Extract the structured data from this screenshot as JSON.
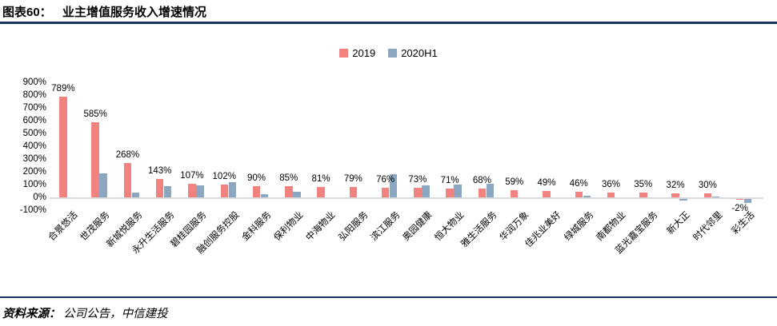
{
  "header": {
    "figure_label": "图表60：",
    "title": "业主增值服务收入增速情况"
  },
  "legend": [
    {
      "name": "2019",
      "color": "#F2827F"
    },
    {
      "name": "2020H1",
      "color": "#8BA7C2"
    }
  ],
  "colors": {
    "accent_navy": "#17375E",
    "axis_line": "#D9D9D9",
    "series_2019": "#F2827F",
    "series_2020h1": "#8BA7C2"
  },
  "chart_data": {
    "type": "bar",
    "title": "业主增值服务收入增速情况",
    "categories": [
      "合景悠活",
      "世茂服务",
      "新城悦服务",
      "永升生活服务",
      "碧桂园服务",
      "融创服务控股",
      "金科服务",
      "保利物业",
      "中海物业",
      "弘阳服务",
      "滨江服务",
      "奥园健康",
      "恒大物业",
      "雅生活服务",
      "华润万象",
      "佳兆业美好",
      "绿城服务",
      "南都物业",
      "蓝光嘉宝服务",
      "新大正",
      "时代邻里",
      "彩生活"
    ],
    "series": [
      {
        "name": "2019",
        "color": "#F2827F",
        "values": [
          789,
          585,
          268,
          143,
          107,
          102,
          90,
          85,
          81,
          79,
          76,
          73,
          71,
          68,
          59,
          49,
          46,
          36,
          35,
          32,
          30,
          -2
        ],
        "labels": [
          "789%",
          "585%",
          "268%",
          "143%",
          "107%",
          "102%",
          "90%",
          "85%",
          "81%",
          "79%",
          "76%",
          "73%",
          "71%",
          "68%",
          "59%",
          "49%",
          "46%",
          "36%",
          "35%",
          "32%",
          "30%",
          "-2%"
        ]
      },
      {
        "name": "2020H1",
        "color": "#8BA7C2",
        "values": [
          null,
          190,
          38,
          85,
          95,
          120,
          28,
          45,
          null,
          null,
          180,
          95,
          100,
          105,
          null,
          null,
          10,
          null,
          null,
          -15,
          5,
          -30
        ],
        "labels": null
      }
    ],
    "ylabel": "",
    "ylim": [
      -100,
      900
    ],
    "ytick_step": 100,
    "ytick_format": "{v}%",
    "grid": false,
    "legend_position": "top-center",
    "data_labels_on_series": "2019"
  },
  "footer": {
    "source_prefix": "资料来源：",
    "source_text": "公司公告，中信建投"
  }
}
